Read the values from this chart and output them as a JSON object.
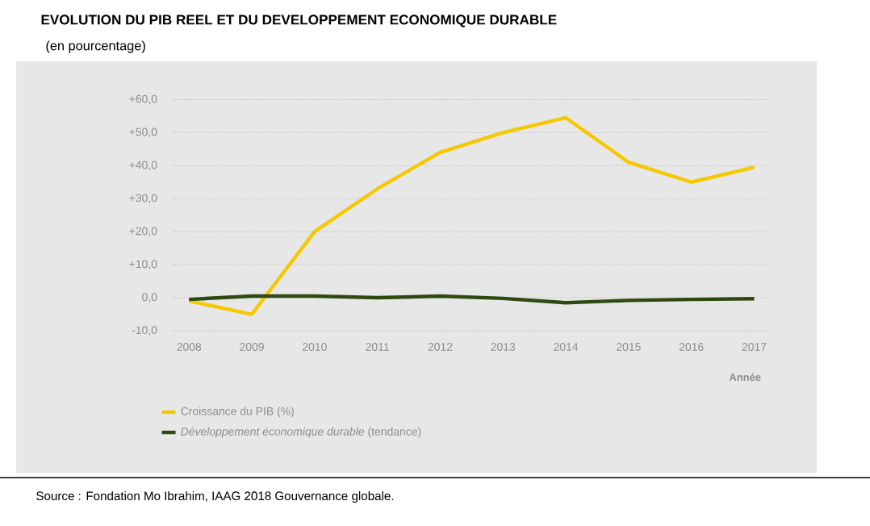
{
  "chart_data": {
    "type": "line",
    "title": "EVOLUTION DU PIB REEL ET DU DEVELOPPEMENT ECONOMIQUE DURABLE",
    "subtitle": "(en pourcentage)",
    "xlabel": "Année",
    "categories": [
      "2008",
      "2009",
      "2010",
      "2011",
      "2012",
      "2013",
      "2014",
      "2015",
      "2016",
      "2017"
    ],
    "series": [
      {
        "name": "Croissance du PIB (%)",
        "color": "#f5c800",
        "values": [
          -1,
          -5,
          20,
          33,
          44,
          50,
          54.5,
          41,
          35,
          39.5
        ]
      },
      {
        "name": "*Développement économique durable* (tendance)",
        "color": "#2d4a10",
        "values": [
          -0.5,
          0.5,
          0.5,
          0,
          0.5,
          -0.2,
          -1.5,
          -0.8,
          -0.5,
          -0.3
        ]
      }
    ],
    "ylim": [
      -10,
      60
    ],
    "yticks": [
      {
        "value": -10,
        "label": "-10,0"
      },
      {
        "value": 0,
        "label": "0,0"
      },
      {
        "value": 10,
        "label": "+10,0"
      },
      {
        "value": 20,
        "label": "+20,0"
      },
      {
        "value": 30,
        "label": "+30,0"
      },
      {
        "value": 40,
        "label": "+40,0"
      },
      {
        "value": 50,
        "label": "+50,0"
      },
      {
        "value": 60,
        "label": "+60,0"
      }
    ],
    "grid": "y",
    "legend": "bottom",
    "annotations": [
      "Source : Fondation Mo Ibrahim, IAAG 2018 Gouvernance globale."
    ]
  }
}
